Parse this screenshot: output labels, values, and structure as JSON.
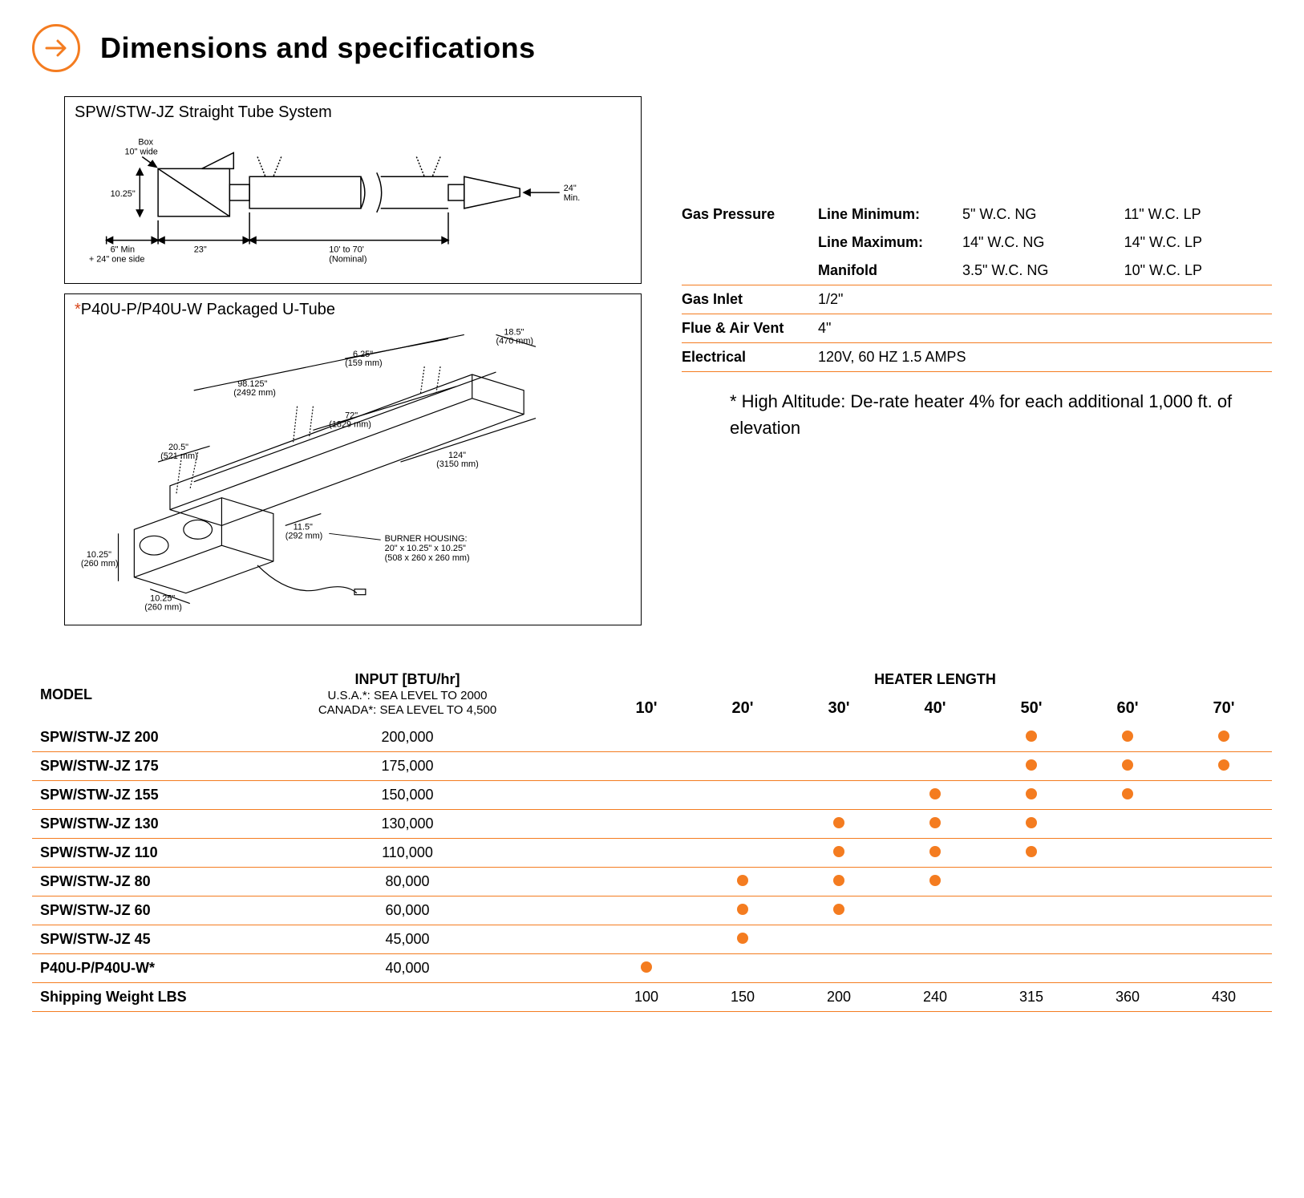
{
  "colors": {
    "accent": "#f47c20",
    "accent_dark": "#d8451a",
    "text": "#000000",
    "bg": "#ffffff",
    "line": "#000000"
  },
  "header": {
    "title": "Dimensions and specifications"
  },
  "diagrams": {
    "a": {
      "title": "SPW/STW-JZ Straight Tube System",
      "labels": {
        "box": "Box\n10\" wide",
        "h": "10.25\"",
        "left": "6\" Min\n+ 24\" one side",
        "mid1": "23\"",
        "mid2": "10' to 70'\n(Nominal)",
        "right": "24\"\nMin."
      }
    },
    "b": {
      "title_prefix": "*",
      "title": "P40U-P/P40U-W Packaged U-Tube",
      "labels": {
        "l1": "98.125\"\n(2492 mm)",
        "l2": "6.25\"\n(159 mm)",
        "l3": "18.5\"\n(470 mm)",
        "l4": "72\"\n(1829 mm)",
        "l5": "20.5\"\n(521 mm)",
        "l6": "124\"\n(3150 mm)",
        "l7": "11.5\"\n(292 mm)",
        "l8": "10.25\"\n(260 mm)",
        "l9": "10.25\"\n(260 mm)",
        "burner": "BURNER HOUSING:\n20\" x 10.25\" x 10.25\"\n(508 x 260 x 260 mm)"
      }
    }
  },
  "specs": {
    "gas_pressure": {
      "label": "Gas Pressure",
      "rows": [
        {
          "name": "Line Minimum:",
          "ng": "5\" W.C. NG",
          "lp": "11\" W.C. LP"
        },
        {
          "name": "Line Maximum:",
          "ng": "14\" W.C. NG",
          "lp": "14\" W.C. LP"
        },
        {
          "name": "Manifold",
          "ng": "3.5\" W.C. NG",
          "lp": "10\" W.C. LP"
        }
      ]
    },
    "gas_inlet": {
      "label": "Gas Inlet",
      "value": "1/2\""
    },
    "flue": {
      "label": "Flue & Air Vent",
      "value": "4\""
    },
    "electrical": {
      "label": "Electrical",
      "value": "120V, 60 HZ 1.5 AMPS"
    },
    "altitude_note": "* High Altitude:  De-rate heater 4% for each additional 1,000 ft. of elevation"
  },
  "model_table": {
    "headers": {
      "model": "MODEL",
      "input_title": "INPUT [BTU/hr]",
      "input_sub1": "U.S.A.*: SEA LEVEL TO 2000",
      "input_sub2": "CANADA*: SEA LEVEL TO 4,500",
      "heater_length": "HEATER LENGTH",
      "lengths": [
        "10'",
        "20'",
        "30'",
        "40'",
        "50'",
        "60'",
        "70'"
      ]
    },
    "rows": [
      {
        "model": "SPW/STW-JZ 200",
        "input": "200,000",
        "dots": [
          0,
          0,
          0,
          0,
          1,
          1,
          1
        ]
      },
      {
        "model": "SPW/STW-JZ 175",
        "input": "175,000",
        "dots": [
          0,
          0,
          0,
          0,
          1,
          1,
          1
        ]
      },
      {
        "model": "SPW/STW-JZ 155",
        "input": "150,000",
        "dots": [
          0,
          0,
          0,
          1,
          1,
          1,
          0
        ]
      },
      {
        "model": "SPW/STW-JZ 130",
        "input": "130,000",
        "dots": [
          0,
          0,
          1,
          1,
          1,
          0,
          0
        ]
      },
      {
        "model": "SPW/STW-JZ 110",
        "input": "110,000",
        "dots": [
          0,
          0,
          1,
          1,
          1,
          0,
          0
        ]
      },
      {
        "model": "SPW/STW-JZ 80",
        "input": "80,000",
        "dots": [
          0,
          1,
          1,
          1,
          0,
          0,
          0
        ]
      },
      {
        "model": "SPW/STW-JZ 60",
        "input": "60,000",
        "dots": [
          0,
          1,
          1,
          0,
          0,
          0,
          0
        ]
      },
      {
        "model": "SPW/STW-JZ 45",
        "input": "45,000",
        "dots": [
          0,
          1,
          0,
          0,
          0,
          0,
          0
        ]
      },
      {
        "model": "P40U-P/P40U-W*",
        "input": "40,000",
        "dots": [
          1,
          0,
          0,
          0,
          0,
          0,
          0
        ]
      }
    ],
    "shipping": {
      "label": "Shipping Weight LBS",
      "values": [
        "100",
        "150",
        "200",
        "240",
        "315",
        "360",
        "430"
      ]
    }
  }
}
